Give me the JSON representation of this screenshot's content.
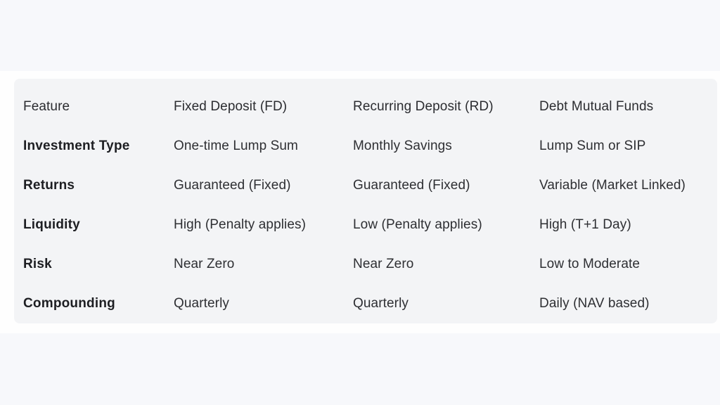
{
  "table": {
    "columns": [
      {
        "label": "Feature"
      },
      {
        "label": "Fixed Deposit (FD)"
      },
      {
        "label": "Recurring Deposit (RD)"
      },
      {
        "label": "Debt Mutual Funds"
      }
    ],
    "rows": [
      {
        "feature": "Investment Type",
        "fd": "One-time Lump Sum",
        "rd": "Monthly Savings",
        "dmf": "Lump Sum or SIP"
      },
      {
        "feature": "Returns",
        "fd": "Guaranteed (Fixed)",
        "rd": "Guaranteed (Fixed)",
        "dmf": "Variable (Market Linked)"
      },
      {
        "feature": "Liquidity",
        "fd": "High (Penalty applies)",
        "rd": "Low (Penalty applies)",
        "dmf": "High (T+1 Day)"
      },
      {
        "feature": "Risk",
        "fd": "Near Zero",
        "rd": "Near Zero",
        "dmf": "Low to Moderate"
      },
      {
        "feature": "Compounding",
        "fd": "Quarterly",
        "rd": "Quarterly",
        "dmf": "Daily (NAV based)"
      }
    ]
  },
  "colors": {
    "outer_band": "#f7f8fb",
    "page": "#fefefe",
    "panel": "#f3f4f6",
    "text": "#2e2f33",
    "label_text": "#1d1e22"
  }
}
